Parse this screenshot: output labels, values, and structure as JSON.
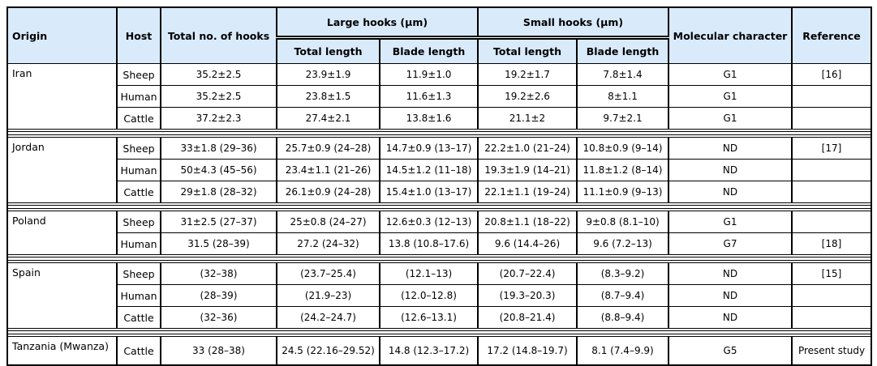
{
  "table": {
    "colors": {
      "header_bg": "#d9eafb",
      "border": "#000000"
    },
    "header": {
      "origin": "Origin",
      "host": "Host",
      "total_hooks": "Total no. of hooks",
      "large_hooks": "Large hooks (μm)",
      "small_hooks": "Small hooks (μm)",
      "total_length": "Total length",
      "blade_length": "Blade length",
      "molecular": "Molecular character",
      "reference": "Reference"
    },
    "groups": [
      {
        "origin": "Iran",
        "rows": [
          [
            "Sheep",
            "35.2±2.5",
            "23.9±1.9",
            "11.9±1.0",
            "19.2±1.7",
            "7.8±1.4",
            "G1",
            "[16]"
          ],
          [
            "Human",
            "35.2±2.5",
            "23.8±1.5",
            "11.6±1.3",
            "19.2±2.6",
            "8±1.1",
            "G1",
            ""
          ],
          [
            "Cattle",
            "37.2±2.3",
            "27.4±2.1",
            "13.8±1.6",
            "21.1±2",
            "9.7±2.1",
            "G1",
            ""
          ]
        ]
      },
      {
        "origin": "Jordan",
        "rows": [
          [
            "Sheep",
            "33±1.8 (29–36)",
            "25.7±0.9 (24–28)",
            "14.7±0.9 (13–17)",
            "22.2±1.0 (21–24)",
            "10.8±0.9 (9–14)",
            "ND",
            "[17]"
          ],
          [
            "Human",
            "50±4.3 (45–56)",
            "23.4±1.1 (21–26)",
            "14.5±1.2 (11–18)",
            "19.3±1.9 (14–21)",
            "11.8±1.2 (8–14)",
            "ND",
            ""
          ],
          [
            "Cattle",
            "29±1.8 (28–32)",
            "26.1±0.9 (24–28)",
            "15.4±1.0 (13–17)",
            "22.1±1.1 (19–24)",
            "11.1±0.9 (9–13)",
            "ND",
            ""
          ]
        ]
      },
      {
        "origin": "Poland",
        "rows": [
          [
            "Sheep",
            "31±2.5 (27–37)",
            "25±0.8 (24–27)",
            "12.6±0.3 (12–13)",
            "20.8±1.1 (18–22)",
            "9±0.8 (8.1–10)",
            "G1",
            ""
          ],
          [
            "Human",
            "31.5 (28–39)",
            "27.2 (24–32)",
            "13.8 (10.8–17.6)",
            "9.6 (14.4–26)",
            "9.6 (7.2–13)",
            "G7",
            "[18]"
          ]
        ]
      },
      {
        "origin": "Spain",
        "rows": [
          [
            "Sheep",
            "(32–38)",
            "(23.7–25.4)",
            "(12.1–13)",
            "(20.7–22.4)",
            "(8.3–9.2)",
            "ND",
            "[15]"
          ],
          [
            "Human",
            "(28–39)",
            "(21.9–23)",
            "(12.0–12.8)",
            "(19.3–20.3)",
            "(8.7–9.4)",
            "ND",
            ""
          ],
          [
            "Cattle",
            "(32–36)",
            "(24.2–24.7)",
            "(12.6–13.1)",
            "(20.8–21.4)",
            "(8.8–9.4)",
            "ND",
            ""
          ]
        ]
      },
      {
        "origin": "Tanzania (Mwanza)",
        "rows": [
          [
            "Cattle",
            "33 (28–38)",
            "24.5 (22.16–29.52)",
            "14.8 (12.3–17.2)",
            "17.2 (14.8–19.7)",
            "8.1 (7.4–9.9)",
            "G5",
            "Present study"
          ]
        ]
      }
    ]
  }
}
